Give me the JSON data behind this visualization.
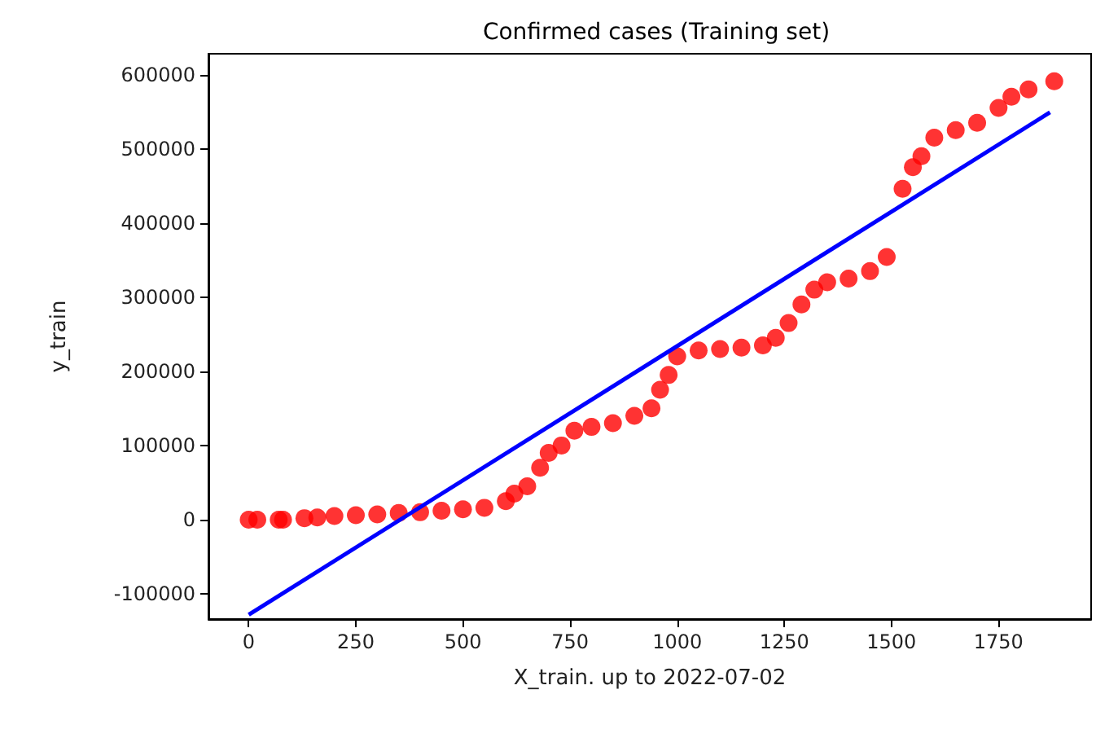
{
  "chart_data": {
    "type": "scatter",
    "title": "Confirmed cases (Training set)",
    "xlabel": "X_train. up to 2022-07-02",
    "ylabel": "y_train",
    "xlim": [
      -94,
      1966
    ],
    "xticks": [
      0,
      250,
      500,
      750,
      1000,
      1250,
      1500,
      1750
    ],
    "ylim": [
      -134000,
      628000
    ],
    "yticks": [
      -100000,
      0,
      100000,
      200000,
      300000,
      400000,
      500000,
      600000
    ],
    "grid": false,
    "marker": "circle",
    "series": [
      {
        "color": "#ff0000",
        "x": [
          0,
          20,
          70,
          80,
          130,
          160,
          200,
          250,
          300,
          350,
          400,
          450,
          500,
          550,
          600,
          620,
          650,
          680,
          700,
          730,
          760,
          800,
          850,
          900,
          940,
          960,
          980,
          1000,
          1050,
          1100,
          1150,
          1200,
          1230,
          1260,
          1290,
          1320,
          1350,
          1400,
          1450,
          1489,
          1526,
          1550,
          1570,
          1600,
          1650,
          1700,
          1750,
          1780,
          1820,
          1880
        ],
        "values": [
          0,
          0,
          0,
          0,
          2000,
          3000,
          5000,
          6000,
          7000,
          9000,
          10000,
          12000,
          14000,
          16000,
          25000,
          35000,
          45000,
          70000,
          90000,
          100000,
          120000,
          125000,
          130000,
          140000,
          150000,
          175000,
          195000,
          220000,
          228000,
          230000,
          232000,
          235000,
          245000,
          265000,
          290000,
          310000,
          320000,
          325000,
          335000,
          354000,
          446000,
          475000,
          490000,
          515000,
          525000,
          535000,
          555000,
          570000,
          580000,
          591000
        ]
      },
      {
        "type": "line",
        "color": "#0000ff",
        "line_style": "solid",
        "marker": "none",
        "x": [
          0,
          1870
        ],
        "values": [
          -128000,
          549000
        ]
      }
    ]
  }
}
